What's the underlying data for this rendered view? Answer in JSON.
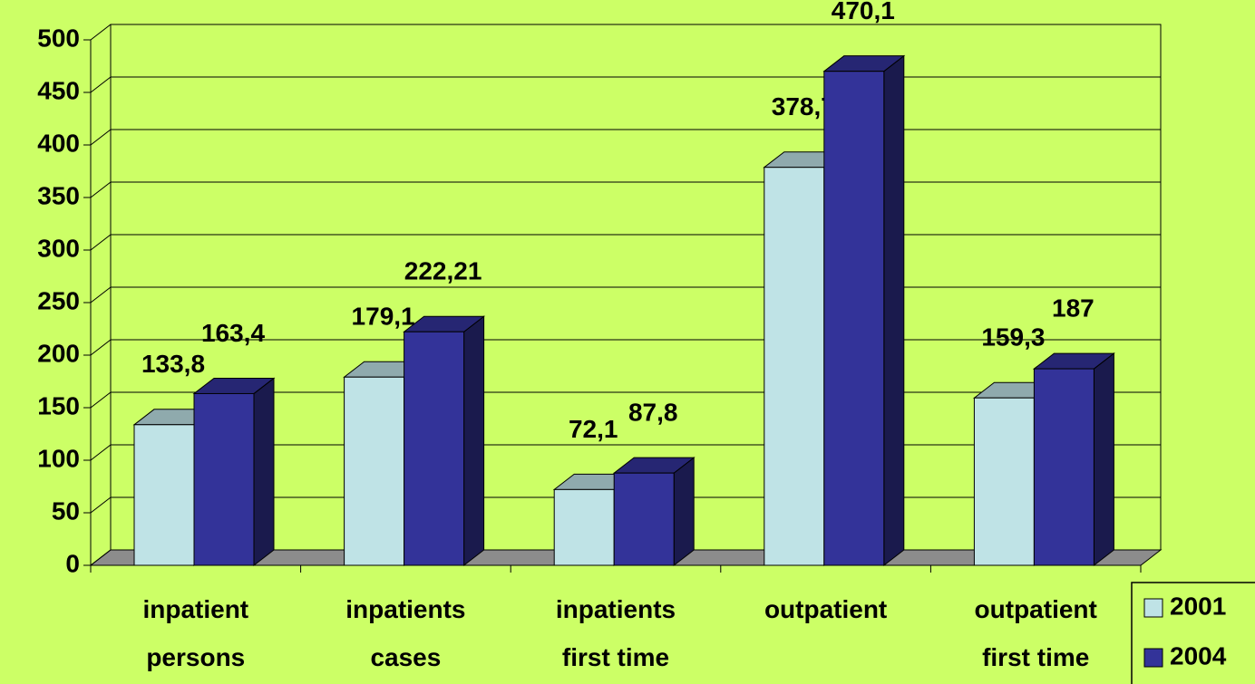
{
  "chart_data": {
    "type": "bar3d",
    "categories": [
      "inpatient\npersons",
      "inpatients\ncases",
      "inpatients\nfirst time",
      "outpatient",
      "outpatient\nfirst time"
    ],
    "series": [
      {
        "name": "2001",
        "color": "#bfe3e6",
        "values": [
          133.8,
          179.1,
          72.1,
          378.7,
          159.3
        ],
        "value_labels": [
          "133,8",
          "179,1",
          "72,1",
          "378,7",
          "159,3"
        ]
      },
      {
        "name": "2004",
        "color": "#333399",
        "values": [
          163.4,
          222.21,
          87.8,
          470.1,
          187
        ],
        "value_labels": [
          "163,4",
          "222,21",
          "87,8",
          "470,1",
          "187"
        ]
      }
    ],
    "ylim": [
      0,
      500
    ],
    "yticks": [
      0,
      50,
      100,
      150,
      200,
      250,
      300,
      350,
      400,
      450,
      500
    ],
    "grid": true,
    "legend": "bottom-right"
  }
}
